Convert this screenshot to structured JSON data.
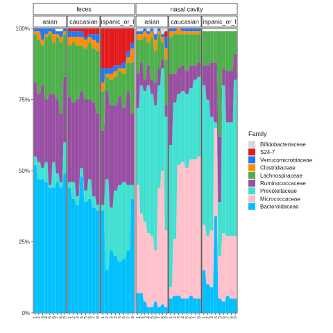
{
  "chart_data": {
    "type": "stacked-bar-area",
    "ylim": [
      0,
      1
    ],
    "y_ticks": [
      {
        "value": 0,
        "label": "0%"
      },
      {
        "value": 0.25,
        "label": "25%"
      },
      {
        "value": 0.5,
        "label": "50%"
      },
      {
        "value": 0.75,
        "label": "75%"
      },
      {
        "value": 1,
        "label": "100%"
      }
    ],
    "legend": {
      "title": "Family",
      "position": "right",
      "entries": [
        {
          "name": "Bifidobacteriaceae",
          "color": "#d9d9d9"
        },
        {
          "name": "S24-7",
          "color": "#e31a1c"
        },
        {
          "name": "Verrucomicrobiaceae",
          "color": "#1f78f4"
        },
        {
          "name": "Clostridiaceae",
          "color": "#ff8c00"
        },
        {
          "name": "Lachnospiraceae",
          "color": "#4daf4a"
        },
        {
          "name": "Ruminococcaceae",
          "color": "#984ea3"
        },
        {
          "name": "Prevotellaceae",
          "color": "#40e0d0"
        },
        {
          "name": "Micrococcaceae",
          "color": "#ffc0cb"
        },
        {
          "name": "Bacteroidaceae",
          "color": "#00bfff"
        }
      ]
    },
    "stack_order": [
      "Bacteroidaceae",
      "Micrococcaceae",
      "Prevotellaceae",
      "Ruminococcaceae",
      "Lachnospiraceae",
      "Clostridiaceae",
      "Verrucomicrobiaceae",
      "S24-7",
      "Bifidobacteriaceae"
    ],
    "facets": [
      {
        "group": "feces",
        "panels": [
          {
            "label": "asian",
            "x": [
              "1",
              "2",
              "3",
              "4",
              "5",
              "6",
              "7",
              "8",
              "9"
            ],
            "values": {
              "Bacteroidaceae": [
                0.52,
                0.47,
                0.47,
                0.46,
                0.44,
                0.44,
                0.46,
                0.44,
                0.49
              ],
              "Micrococcaceae": [
                0,
                0,
                0,
                0,
                0,
                0,
                0,
                0,
                0
              ],
              "Prevotellaceae": [
                0.03,
                0.06,
                0.04,
                0.07,
                0.01,
                0.09,
                0.03,
                0.02,
                0.11
              ],
              "Ruminococcaceae": [
                0.26,
                0.24,
                0.29,
                0.22,
                0.32,
                0.24,
                0.26,
                0.24,
                0.23
              ],
              "Lachnospiraceae": [
                0.17,
                0.19,
                0.14,
                0.22,
                0.21,
                0.18,
                0.22,
                0.25,
                0.15
              ],
              "Clostridiaceae": [
                0.01,
                0.03,
                0.02,
                0.01,
                0.01,
                0.03,
                0.01,
                0.02,
                0.01
              ],
              "Verrucomicrobiaceae": [
                0.01,
                0.01,
                0.04,
                0.02,
                0.01,
                0.02,
                0.01,
                0.02,
                0.01
              ],
              "S24-7": [
                0,
                0,
                0,
                0,
                0,
                0,
                0,
                0,
                0
              ],
              "Bifidobacteriaceae": [
                0,
                0,
                0,
                0,
                0,
                0,
                0,
                0,
                0
              ]
            }
          },
          {
            "label": "caucasian",
            "x": [
              "1",
              "2",
              "3",
              "4",
              "5",
              "6",
              "7",
              "8"
            ],
            "values": {
              "Bacteroidaceae": [
                0.44,
                0.4,
                0.38,
                0.48,
                0.39,
                0.4,
                0.37,
                0.36
              ],
              "Micrococcaceae": [
                0,
                0,
                0,
                0,
                0,
                0,
                0,
                0
              ],
              "Prevotellaceae": [
                0.02,
                0.06,
                0.03,
                0.03,
                0.04,
                0.07,
                0.04,
                0.02
              ],
              "Ruminococcaceae": [
                0.3,
                0.28,
                0.34,
                0.27,
                0.32,
                0.28,
                0.33,
                0.32
              ],
              "Lachnospiraceae": [
                0.18,
                0.21,
                0.19,
                0.16,
                0.18,
                0.2,
                0.19,
                0.22
              ],
              "Clostridiaceae": [
                0.03,
                0.02,
                0.03,
                0.03,
                0.03,
                0.02,
                0.03,
                0.03
              ],
              "Verrucomicrobiaceae": [
                0.02,
                0.02,
                0.02,
                0.02,
                0.01,
                0.01,
                0.02,
                0.03
              ],
              "S24-7": [
                0.01,
                0.01,
                0.01,
                0.01,
                0.03,
                0.02,
                0.02,
                0.02
              ],
              "Bifidobacteriaceae": [
                0,
                0,
                0,
                0,
                0,
                0,
                0,
                0
              ]
            }
          },
          {
            "label": "hispanic_or_la",
            "x": [
              "1",
              "2",
              "3",
              "4",
              "5",
              "6",
              "7",
              "8"
            ],
            "values": {
              "Bacteroidaceae": [
                0.36,
                0.15,
                0.22,
                0.2,
                0.18,
                0.19,
                0.22,
                0.4
              ],
              "Micrococcaceae": [
                0,
                0,
                0,
                0,
                0,
                0,
                0,
                0
              ],
              "Prevotellaceae": [
                0.02,
                0.32,
                0.15,
                0.23,
                0.27,
                0.27,
                0.23,
                0.05
              ],
              "Ruminococcaceae": [
                0.26,
                0.31,
                0.36,
                0.3,
                0.31,
                0.26,
                0.33,
                0.25
              ],
              "Lachnospiraceae": [
                0.14,
                0.05,
                0.09,
                0.1,
                0.09,
                0.12,
                0.1,
                0.18
              ],
              "Clostridiaceae": [
                0.03,
                0.01,
                0.02,
                0.02,
                0.01,
                0.02,
                0.02,
                0.05
              ],
              "Verrucomicrobiaceae": [
                0.05,
                0.02,
                0.02,
                0.02,
                0.01,
                0.02,
                0.02,
                0.02
              ],
              "S24-7": [
                0.14,
                0.14,
                0.14,
                0.13,
                0.13,
                0.12,
                0.08,
                0.05
              ],
              "Bifidobacteriaceae": [
                0,
                0,
                0,
                0,
                0,
                0,
                0,
                0
              ]
            }
          }
        ]
      },
      {
        "group": "nasal cavity",
        "panels": [
          {
            "label": "asian",
            "x": [
              "1",
              "2",
              "3",
              "4",
              "5",
              "6",
              "7",
              "8",
              "9"
            ],
            "values": {
              "Bacteroidaceae": [
                0.07,
                0.07,
                0.04,
                0.02,
                0.02,
                0.04,
                0.02,
                0.03,
                0.02
              ],
              "Micrococcaceae": [
                0.38,
                0.28,
                0.28,
                0.26,
                0.25,
                0.18,
                0.42,
                0.47,
                0.27
              ],
              "Prevotellaceae": [
                0.27,
                0.45,
                0.46,
                0.52,
                0.5,
                0.51,
                0.36,
                0.36,
                0.4
              ],
              "Ruminococcaceae": [
                0.12,
                0.08,
                0.04,
                0.07,
                0.05,
                0.08,
                0.06,
                0.03,
                0.04
              ],
              "Lachnospiraceae": [
                0.12,
                0.08,
                0.15,
                0.08,
                0.15,
                0.11,
                0.12,
                0.06,
                0.16
              ],
              "Clostridiaceae": [
                0.02,
                0.02,
                0.02,
                0.03,
                0.02,
                0.04,
                0.01,
                0.02,
                0.04
              ],
              "Verrucomicrobiaceae": [
                0.01,
                0.01,
                0.01,
                0.01,
                0.01,
                0.02,
                0.01,
                0.01,
                0.04
              ],
              "S24-7": [
                0,
                0,
                0,
                0,
                0,
                0,
                0,
                0,
                0.02
              ],
              "Bifidobacteriaceae": [
                0.01,
                0.01,
                0,
                0.01,
                0,
                0.02,
                0,
                0.02,
                0.01
              ]
            }
          },
          {
            "label": "caucasian",
            "x": [
              "1",
              "2",
              "3",
              "4",
              "5",
              "6",
              "7",
              "8"
            ],
            "values": {
              "Bacteroidaceae": [
                0.05,
                0.06,
                0.06,
                0.05,
                0.05,
                0.06,
                0.05,
                0.05
              ],
              "Micrococcaceae": [
                0.04,
                0.2,
                0.46,
                0.48,
                0.46,
                0.48,
                0.49,
                0.5
              ],
              "Prevotellaceae": [
                0.5,
                0.48,
                0.25,
                0.25,
                0.26,
                0.25,
                0.28,
                0.28
              ],
              "Ruminococcaceae": [
                0.25,
                0.1,
                0.09,
                0.09,
                0.08,
                0.08,
                0.05,
                0.05
              ],
              "Lachnospiraceae": [
                0.13,
                0.14,
                0.12,
                0.11,
                0.13,
                0.11,
                0.11,
                0.1
              ],
              "Clostridiaceae": [
                0.02,
                0.01,
                0.02,
                0.01,
                0.01,
                0.01,
                0.01,
                0.01
              ],
              "Verrucomicrobiaceae": [
                0.01,
                0.01,
                0,
                0.01,
                0.01,
                0.01,
                0.01,
                0.01
              ],
              "S24-7": [
                0,
                0,
                0,
                0,
                0,
                0,
                0,
                0
              ],
              "Bifidobacteriaceae": [
                0,
                0,
                0,
                0,
                0,
                0,
                0,
                0
              ]
            }
          },
          {
            "label": "hispanic_or_la",
            "x": [
              "1",
              "2",
              "3",
              "4",
              "5",
              "6",
              "7",
              "8",
              "9"
            ],
            "values": {
              "Bacteroidaceae": [
                0.15,
                0.1,
                0.09,
                0.34,
                0.05,
                0.04,
                0.06,
                0.05,
                0.05
              ],
              "Micrococcaceae": [
                0.16,
                0.17,
                0.2,
                0.31,
                0.15,
                0.24,
                0.21,
                0.22,
                0.22
              ],
              "Prevotellaceae": [
                0.49,
                0.48,
                0.4,
                0.02,
                0.19,
                0.52,
                0.4,
                0.4,
                0.55
              ],
              "Ruminococcaceae": [
                0.07,
                0.12,
                0.19,
                0.21,
                0.23,
                0.06,
                0.18,
                0.18,
                0.09
              ],
              "Lachnospiraceae": [
                0.12,
                0.12,
                0.11,
                0.11,
                0.37,
                0.13,
                0.14,
                0.14,
                0.08
              ],
              "Clostridiaceae": [
                0,
                0,
                0,
                0,
                0,
                0,
                0,
                0,
                0
              ],
              "Verrucomicrobiaceae": [
                0,
                0,
                0,
                0,
                0,
                0,
                0,
                0,
                0
              ],
              "S24-7": [
                0,
                0,
                0,
                0,
                0,
                0,
                0,
                0,
                0
              ],
              "Bifidobacteriaceae": [
                0,
                0,
                0,
                0,
                0,
                0,
                0,
                0,
                0
              ]
            }
          }
        ]
      }
    ]
  }
}
